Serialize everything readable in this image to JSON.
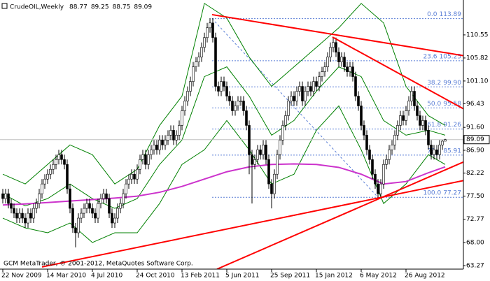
{
  "chart_data": {
    "type": "candlestick",
    "title": "CrudeOIL,Weekly",
    "footer": "GCM MetaTrader, © 2001-2012, MetaQuotes Software Corp.",
    "categories": [
      "22 Nov 2009",
      null,
      null,
      null,
      null,
      null,
      null,
      null,
      null,
      null,
      null,
      null,
      null,
      null,
      null,
      null,
      "14 Mar 2010",
      null,
      null,
      null,
      null,
      null,
      null,
      null,
      null,
      null,
      null,
      null,
      null,
      null,
      null,
      null,
      "4 Jul 2010",
      null,
      null,
      null,
      null,
      null,
      null,
      null,
      null,
      null,
      null,
      null,
      null,
      null,
      null,
      null,
      "24 Oct 2010",
      null,
      null,
      null,
      null,
      null,
      null,
      null,
      null,
      null,
      null,
      null,
      null,
      null,
      null,
      null,
      "13 Feb 2011",
      null,
      null,
      null,
      null,
      null,
      null,
      null,
      null,
      null,
      null,
      null,
      null,
      null,
      null,
      null,
      "5 Jun 2011",
      null,
      null,
      null,
      null,
      null,
      null,
      null,
      null,
      null,
      null,
      null,
      null,
      null,
      null,
      null,
      "25 Sep 2011",
      null,
      null,
      null,
      null,
      null,
      null,
      null,
      null,
      null,
      null,
      null,
      null,
      null,
      null,
      null,
      "15 Jan 2012",
      null,
      null,
      null,
      null,
      null,
      null,
      null,
      null,
      null,
      null,
      null,
      null,
      null,
      null,
      null,
      "6 May 2012",
      null,
      null,
      null,
      null,
      null,
      null,
      null,
      null,
      null,
      null,
      null,
      null,
      null,
      null,
      null,
      "26 Aug 2012",
      null,
      null,
      null,
      null,
      null,
      null,
      null,
      null,
      null,
      null,
      null,
      null,
      null,
      null
    ],
    "candles": [
      [
        78,
        79,
        76,
        77
      ],
      [
        77,
        79,
        76,
        78
      ],
      [
        78,
        79,
        75,
        76
      ],
      [
        76,
        77,
        74,
        75
      ],
      [
        75,
        76,
        73,
        74
      ],
      [
        74,
        75,
        72,
        73
      ],
      [
        73,
        75,
        72,
        74
      ],
      [
        74,
        75,
        72,
        73
      ],
      [
        73,
        74,
        71,
        72
      ],
      [
        72,
        75,
        71,
        74
      ],
      [
        74,
        75,
        72,
        73
      ],
      [
        73,
        76,
        72,
        75
      ],
      [
        75,
        77,
        74,
        76
      ],
      [
        76,
        79,
        75,
        78
      ],
      [
        78,
        81,
        77,
        80
      ],
      [
        80,
        82,
        79,
        81
      ],
      [
        81,
        83,
        80,
        82
      ],
      [
        82,
        84,
        81,
        83
      ],
      [
        83,
        85,
        82,
        84
      ],
      [
        84,
        86,
        83,
        85
      ],
      [
        85,
        87,
        84,
        86
      ],
      [
        86,
        87,
        84,
        85
      ],
      [
        85,
        86,
        83,
        84
      ],
      [
        84,
        85,
        78,
        79
      ],
      [
        79,
        80,
        74,
        75
      ],
      [
        75,
        76,
        70,
        71
      ],
      [
        71,
        72,
        67,
        70
      ],
      [
        70,
        74,
        69,
        73
      ],
      [
        73,
        75,
        72,
        74
      ],
      [
        74,
        76,
        73,
        75
      ],
      [
        75,
        77,
        74,
        76
      ],
      [
        76,
        77,
        74,
        75
      ],
      [
        75,
        76,
        73,
        74
      ],
      [
        74,
        75,
        72,
        73
      ],
      [
        73,
        77,
        72,
        76
      ],
      [
        76,
        78,
        75,
        77
      ],
      [
        77,
        79,
        76,
        78
      ],
      [
        78,
        79,
        76,
        77
      ],
      [
        77,
        78,
        73,
        74
      ],
      [
        74,
        75,
        71,
        72
      ],
      [
        72,
        74,
        71,
        73
      ],
      [
        73,
        76,
        72,
        75
      ],
      [
        75,
        77,
        74,
        76
      ],
      [
        76,
        79,
        75,
        78
      ],
      [
        78,
        81,
        77,
        80
      ],
      [
        80,
        82,
        79,
        81
      ],
      [
        81,
        83,
        80,
        82
      ],
      [
        82,
        83,
        80,
        81
      ],
      [
        81,
        84,
        80,
        83
      ],
      [
        83,
        86,
        82,
        85
      ],
      [
        85,
        87,
        84,
        86
      ],
      [
        86,
        87,
        83,
        84
      ],
      [
        84,
        87,
        83,
        86
      ],
      [
        86,
        88,
        85,
        87
      ],
      [
        87,
        89,
        86,
        88
      ],
      [
        88,
        89,
        86,
        87
      ],
      [
        87,
        90,
        86,
        89
      ],
      [
        89,
        90,
        87,
        88
      ],
      [
        88,
        90,
        87,
        89
      ],
      [
        89,
        91,
        88,
        90
      ],
      [
        90,
        92,
        89,
        91
      ],
      [
        91,
        92,
        88,
        89
      ],
      [
        89,
        91,
        88,
        90
      ],
      [
        90,
        93,
        89,
        92
      ],
      [
        92,
        96,
        91,
        95
      ],
      [
        95,
        98,
        94,
        97
      ],
      [
        97,
        100,
        96,
        99
      ],
      [
        99,
        102,
        98,
        101
      ],
      [
        101,
        105,
        100,
        104
      ],
      [
        104,
        106,
        103,
        105
      ],
      [
        105,
        107,
        104,
        106
      ],
      [
        106,
        109,
        105,
        108
      ],
      [
        108,
        111,
        107,
        110
      ],
      [
        110,
        113,
        109,
        112
      ],
      [
        112,
        114,
        111,
        113
      ],
      [
        113,
        114,
        109,
        110
      ],
      [
        110,
        111,
        99,
        100
      ],
      [
        100,
        101,
        98,
        99
      ],
      [
        99,
        102,
        98,
        101
      ],
      [
        101,
        102,
        99,
        100
      ],
      [
        100,
        101,
        97,
        98
      ],
      [
        98,
        99,
        96,
        97
      ],
      [
        97,
        98,
        94,
        95
      ],
      [
        95,
        97,
        94,
        96
      ],
      [
        96,
        98,
        95,
        97
      ],
      [
        97,
        98,
        96,
        97
      ],
      [
        97,
        98,
        94,
        95
      ],
      [
        95,
        96,
        91,
        92
      ],
      [
        92,
        93,
        82,
        86
      ],
      [
        86,
        87,
        76,
        84
      ],
      [
        84,
        86,
        83,
        85
      ],
      [
        85,
        88,
        84,
        87
      ],
      [
        87,
        88,
        85,
        86
      ],
      [
        86,
        89,
        85,
        88
      ],
      [
        88,
        89,
        84,
        85
      ],
      [
        85,
        86,
        79,
        80
      ],
      [
        80,
        81,
        75,
        78
      ],
      [
        78,
        83,
        77,
        82
      ],
      [
        82,
        87,
        81,
        86
      ],
      [
        86,
        90,
        85,
        89
      ],
      [
        89,
        93,
        88,
        92
      ],
      [
        92,
        95,
        91,
        94
      ],
      [
        94,
        98,
        93,
        97
      ],
      [
        97,
        99,
        96,
        98
      ],
      [
        98,
        99,
        96,
        97
      ],
      [
        97,
        100,
        96,
        99
      ],
      [
        99,
        101,
        98,
        100
      ],
      [
        100,
        101,
        96,
        97
      ],
      [
        97,
        100,
        96,
        99
      ],
      [
        99,
        101,
        98,
        100
      ],
      [
        100,
        101,
        98,
        99
      ],
      [
        99,
        102,
        98,
        101
      ],
      [
        101,
        102,
        99,
        100
      ],
      [
        100,
        103,
        99,
        102
      ],
      [
        102,
        104,
        101,
        103
      ],
      [
        103,
        105,
        102,
        104
      ],
      [
        104,
        107,
        103,
        106
      ],
      [
        106,
        109,
        105,
        108
      ],
      [
        108,
        110,
        107,
        109
      ],
      [
        109,
        110,
        106,
        107
      ],
      [
        107,
        108,
        104,
        105
      ],
      [
        105,
        107,
        104,
        106
      ],
      [
        106,
        107,
        103,
        104
      ],
      [
        104,
        105,
        102,
        103
      ],
      [
        103,
        105,
        102,
        104
      ],
      [
        104,
        105,
        101,
        102
      ],
      [
        102,
        103,
        97,
        98
      ],
      [
        98,
        99,
        95,
        96
      ],
      [
        96,
        97,
        91,
        92
      ],
      [
        92,
        93,
        89,
        90
      ],
      [
        90,
        91,
        86,
        87
      ],
      [
        87,
        88,
        84,
        85
      ],
      [
        85,
        86,
        81,
        82
      ],
      [
        82,
        83,
        79,
        80
      ],
      [
        80,
        81,
        77,
        78
      ],
      [
        78,
        81,
        77,
        80
      ],
      [
        80,
        85,
        79,
        84
      ],
      [
        84,
        86,
        83,
        85
      ],
      [
        85,
        88,
        84,
        87
      ],
      [
        87,
        89,
        86,
        88
      ],
      [
        88,
        91,
        87,
        90
      ],
      [
        90,
        93,
        89,
        92
      ],
      [
        92,
        95,
        91,
        94
      ],
      [
        94,
        95,
        92,
        93
      ],
      [
        93,
        96,
        92,
        95
      ],
      [
        95,
        98,
        94,
        97
      ],
      [
        97,
        100,
        96,
        99
      ],
      [
        99,
        100,
        95,
        96
      ],
      [
        96,
        97,
        93,
        94
      ],
      [
        94,
        95,
        91,
        92
      ],
      [
        92,
        94,
        91,
        93
      ],
      [
        93,
        94,
        90,
        91
      ],
      [
        91,
        92,
        87,
        88
      ],
      [
        88,
        89,
        85,
        86
      ],
      [
        86,
        88,
        85,
        87
      ],
      [
        87,
        88,
        85,
        86
      ],
      [
        86,
        89,
        85,
        88
      ],
      [
        88,
        89,
        87,
        88.77
      ],
      [
        88.77,
        89.25,
        88.75,
        89.09
      ]
    ],
    "bull_color": "#ffffff",
    "bear_color": "#000000",
    "lines": [
      {
        "color": "#008000",
        "width": 1,
        "x": [
          0,
          8,
          16,
          24,
          32,
          40,
          48,
          56,
          64,
          72,
          80,
          88,
          96,
          104,
          112,
          120,
          128,
          136,
          144,
          152,
          158
        ],
        "values": [
          82,
          80,
          84,
          88,
          86,
          80,
          83,
          92,
          98,
          117,
          114,
          106,
          100,
          104,
          108,
          112,
          117,
          113,
          100,
          94,
          92
        ]
      },
      {
        "color": "#008000",
        "width": 1,
        "x": [
          0,
          8,
          16,
          24,
          32,
          40,
          48,
          56,
          64,
          72,
          80,
          88,
          96,
          104,
          112,
          120,
          128,
          136,
          144,
          152,
          158
        ],
        "values": [
          78,
          75.5,
          77,
          80,
          77,
          75,
          77,
          84,
          89,
          102,
          104,
          98,
          90,
          93,
          99,
          104,
          102,
          93,
          90,
          91,
          90
        ]
      },
      {
        "color": "#008000",
        "width": 1,
        "x": [
          0,
          8,
          16,
          24,
          32,
          40,
          48,
          56,
          64,
          72,
          80,
          88,
          96,
          104,
          112,
          120,
          128,
          136,
          144,
          152,
          158
        ],
        "values": [
          73,
          71,
          70,
          72,
          68,
          70,
          70,
          76,
          84,
          87,
          93,
          87,
          80,
          82,
          91,
          96,
          87,
          76,
          80,
          86,
          84
        ]
      },
      {
        "color": "#cc33cc",
        "width": 2,
        "x": [
          0,
          8,
          16,
          24,
          32,
          40,
          48,
          56,
          64,
          72,
          80,
          88,
          96,
          104,
          112,
          120,
          128,
          136,
          144,
          152,
          158
        ],
        "values": [
          75.7,
          75.9,
          76.2,
          76.5,
          76.8,
          77.1,
          77.5,
          78.3,
          79.5,
          81,
          82.5,
          83.5,
          84,
          84.1,
          84,
          83.4,
          82,
          80,
          80.5,
          82.3,
          83.5
        ]
      }
    ],
    "trendlines": {
      "color": "#ff0000",
      "width": 2,
      "items": [
        {
          "x": [
            74.75,
            164.5
          ],
          "values": [
            114.7,
            106.3
          ]
        },
        {
          "x": [
            117.75,
            164.5
          ],
          "values": [
            110.1,
            95.4
          ]
        },
        {
          "x": [
            14,
            164.5
          ],
          "values": [
            63,
            80.7
          ]
        },
        {
          "x": [
            76.5,
            164.5
          ],
          "values": [
            62.55,
            84.5
          ]
        }
      ]
    },
    "fibo": {
      "color": "#5b7fd6",
      "x": [
        74.75,
        134
      ],
      "levels": [
        {
          "ratio": "0.0",
          "price": 113.89
        },
        {
          "ratio": "23.6",
          "price": 105.25
        },
        {
          "ratio": "38.2",
          "price": {
            "value": 99.9,
            "label": "99.90"
          }
        },
        {
          "ratio": "50.0",
          "price": 95.58
        },
        {
          "ratio": "61.8",
          "price": 91.26
        },
        {
          "ratio": "76.4",
          "price": 85.91
        },
        {
          "ratio": "100.0",
          "price": 77.27
        }
      ]
    },
    "ylim": [
      62.55,
      117.7
    ],
    "yticks": [
      110.55,
      105.82,
      {
        "value": 101.1,
        "label": "101.10"
      },
      96.43,
      {
        "value": 91.6,
        "label": "91.60"
      },
      {
        "value": 86.9,
        "label": "86.90"
      },
      82.22,
      {
        "value": 77.5,
        "label": "77.50"
      },
      72.77,
      {
        "value": 68,
        "label": "68.00"
      },
      63.27
    ]
  }
}
